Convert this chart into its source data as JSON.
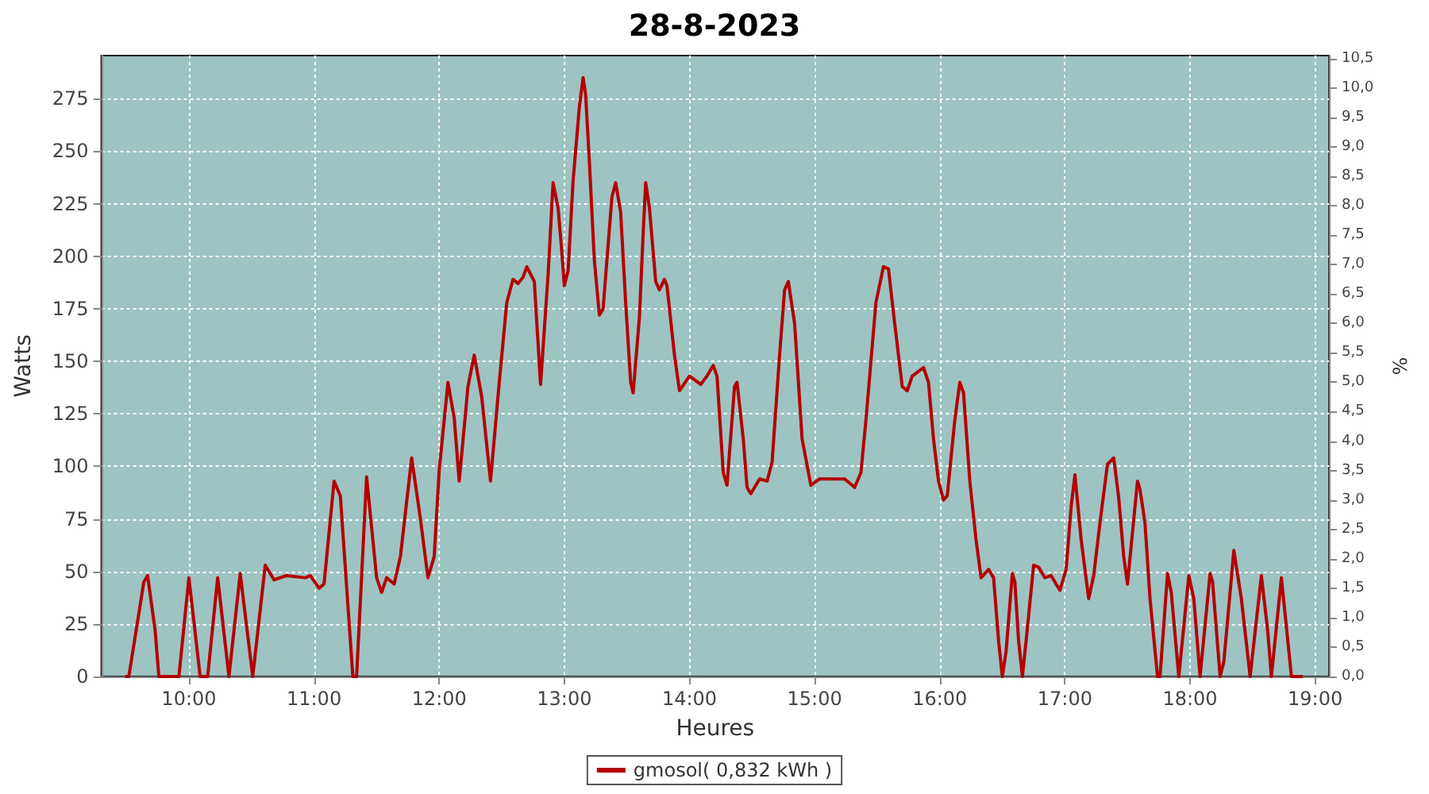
{
  "chart_data": {
    "type": "line",
    "title": "28-8-2023",
    "xlabel": "Heures",
    "ylabel": "Watts",
    "y2label": "%",
    "xlim": [
      9.3,
      19.11
    ],
    "xticks": [
      {
        "value": 10,
        "label": "10:00"
      },
      {
        "value": 11,
        "label": "11:00"
      },
      {
        "value": 12,
        "label": "12:00"
      },
      {
        "value": 13,
        "label": "13:00"
      },
      {
        "value": 14,
        "label": "14:00"
      },
      {
        "value": 15,
        "label": "15:00"
      },
      {
        "value": 16,
        "label": "16:00"
      },
      {
        "value": 17,
        "label": "17:00"
      },
      {
        "value": 18,
        "label": "18:00"
      },
      {
        "value": 19,
        "label": "19:00"
      }
    ],
    "ylim": [
      0,
      295.5
    ],
    "yticks": [
      0,
      25,
      50,
      75,
      100,
      125,
      150,
      175,
      200,
      225,
      250,
      275
    ],
    "y2lim": [
      0,
      10.55
    ],
    "y2ticks": [
      {
        "value": 0,
        "label": "0,0"
      },
      {
        "value": 0.5,
        "label": "0,5"
      },
      {
        "value": 1,
        "label": "1,0"
      },
      {
        "value": 1.5,
        "label": "1,5"
      },
      {
        "value": 2,
        "label": "2,0"
      },
      {
        "value": 2.5,
        "label": "2,5"
      },
      {
        "value": 3,
        "label": "3,0"
      },
      {
        "value": 3.5,
        "label": "3,5"
      },
      {
        "value": 4,
        "label": "4,0"
      },
      {
        "value": 4.5,
        "label": "4,5"
      },
      {
        "value": 5,
        "label": "5,0"
      },
      {
        "value": 5.5,
        "label": "5,5"
      },
      {
        "value": 6,
        "label": "6,0"
      },
      {
        "value": 6.5,
        "label": "6,5"
      },
      {
        "value": 7,
        "label": "7,0"
      },
      {
        "value": 7.5,
        "label": "7,5"
      },
      {
        "value": 8,
        "label": "8,0"
      },
      {
        "value": 8.5,
        "label": "8,5"
      },
      {
        "value": 9,
        "label": "9,0"
      },
      {
        "value": 9.5,
        "label": "9,5"
      },
      {
        "value": 10,
        "label": "10,0"
      },
      {
        "value": 10.5,
        "label": "10,5"
      }
    ],
    "grid": true,
    "legend": "bottom",
    "marker": "none",
    "line_style": "solid",
    "series": [
      {
        "name": "gmosol( 0,832 kWh )",
        "color": "#b30000",
        "x": [
          9.49,
          9.52,
          9.64,
          9.67,
          9.73,
          9.76,
          9.92,
          10.0,
          10.09,
          10.15,
          10.23,
          10.32,
          10.41,
          10.51,
          10.61,
          10.68,
          10.78,
          10.93,
          10.97,
          11.04,
          11.08,
          11.16,
          11.21,
          11.31,
          11.34,
          11.42,
          11.5,
          11.54,
          11.58,
          11.64,
          11.69,
          11.78,
          11.85,
          11.91,
          11.96,
          12.0,
          12.07,
          12.12,
          12.16,
          12.23,
          12.28,
          12.34,
          12.41,
          12.48,
          12.54,
          12.59,
          12.63,
          12.67,
          12.7,
          12.76,
          12.81,
          12.87,
          12.91,
          12.95,
          12.98,
          13.0,
          13.03,
          13.07,
          13.12,
          13.15,
          13.17,
          13.2,
          13.24,
          13.28,
          13.31,
          13.34,
          13.38,
          13.41,
          13.45,
          13.49,
          13.53,
          13.55,
          13.6,
          13.63,
          13.65,
          13.68,
          13.73,
          13.76,
          13.8,
          13.82,
          13.88,
          13.92,
          14.0,
          14.09,
          14.14,
          14.19,
          14.22,
          14.27,
          14.3,
          14.36,
          14.38,
          14.43,
          14.46,
          14.49,
          14.56,
          14.62,
          14.66,
          14.72,
          14.76,
          14.79,
          14.84,
          14.9,
          14.97,
          15.04,
          15.19,
          15.24,
          15.32,
          15.37,
          15.41,
          15.49,
          15.55,
          15.59,
          15.64,
          15.7,
          15.74,
          15.78,
          15.87,
          15.91,
          15.95,
          15.99,
          16.03,
          16.06,
          16.12,
          16.16,
          16.19,
          16.24,
          16.29,
          16.33,
          16.36,
          16.39,
          16.43,
          16.47,
          16.5,
          16.53,
          16.58,
          16.6,
          16.63,
          16.66,
          16.69,
          16.75,
          16.79,
          16.84,
          16.89,
          16.96,
          17.01,
          17.05,
          17.08,
          17.13,
          17.19,
          17.23,
          17.28,
          17.34,
          17.39,
          17.43,
          17.47,
          17.5,
          17.58,
          17.6,
          17.64,
          17.68,
          17.74,
          17.76,
          17.82,
          17.85,
          17.91,
          17.99,
          18.03,
          18.08,
          18.16,
          18.18,
          18.24,
          18.27,
          18.35,
          18.41,
          18.48,
          18.57,
          18.62,
          18.65,
          18.73,
          18.81,
          18.9
        ],
        "values": [
          0,
          0,
          45,
          48,
          22,
          0,
          0,
          47,
          0,
          0,
          47,
          0,
          49,
          0,
          53,
          46,
          48,
          47,
          48,
          42,
          44,
          93,
          86,
          0,
          0,
          95,
          47,
          40,
          47,
          44,
          57,
          104,
          75,
          47,
          57,
          98,
          140,
          123,
          93,
          138,
          153,
          133,
          93,
          140,
          178,
          189,
          187,
          190,
          195,
          188,
          139,
          191,
          235,
          223,
          202,
          186,
          193,
          236,
          271,
          285,
          277,
          245,
          198,
          172,
          175,
          198,
          228,
          235,
          221,
          178,
          140,
          135,
          171,
          211,
          235,
          223,
          188,
          184,
          189,
          186,
          153,
          136,
          143,
          139,
          143,
          148,
          143,
          97,
          91,
          138,
          140,
          113,
          90,
          87,
          94,
          93,
          102,
          153,
          184,
          188,
          168,
          113,
          91,
          94,
          94,
          94,
          90,
          97,
          122,
          178,
          195,
          194,
          168,
          138,
          136,
          143,
          147,
          140,
          113,
          93,
          84,
          86,
          122,
          140,
          135,
          93,
          65,
          47,
          49,
          51,
          47,
          17,
          0,
          12,
          49,
          45,
          17,
          0,
          17,
          53,
          52,
          47,
          48,
          41,
          51,
          81,
          96,
          65,
          37,
          48,
          73,
          101,
          104,
          85,
          57,
          44,
          93,
          89,
          73,
          37,
          0,
          0,
          49,
          40,
          0,
          48,
          37,
          0,
          49,
          45,
          0,
          7,
          60,
          37,
          0,
          48,
          22,
          0,
          47,
          0,
          0
        ]
      }
    ]
  }
}
